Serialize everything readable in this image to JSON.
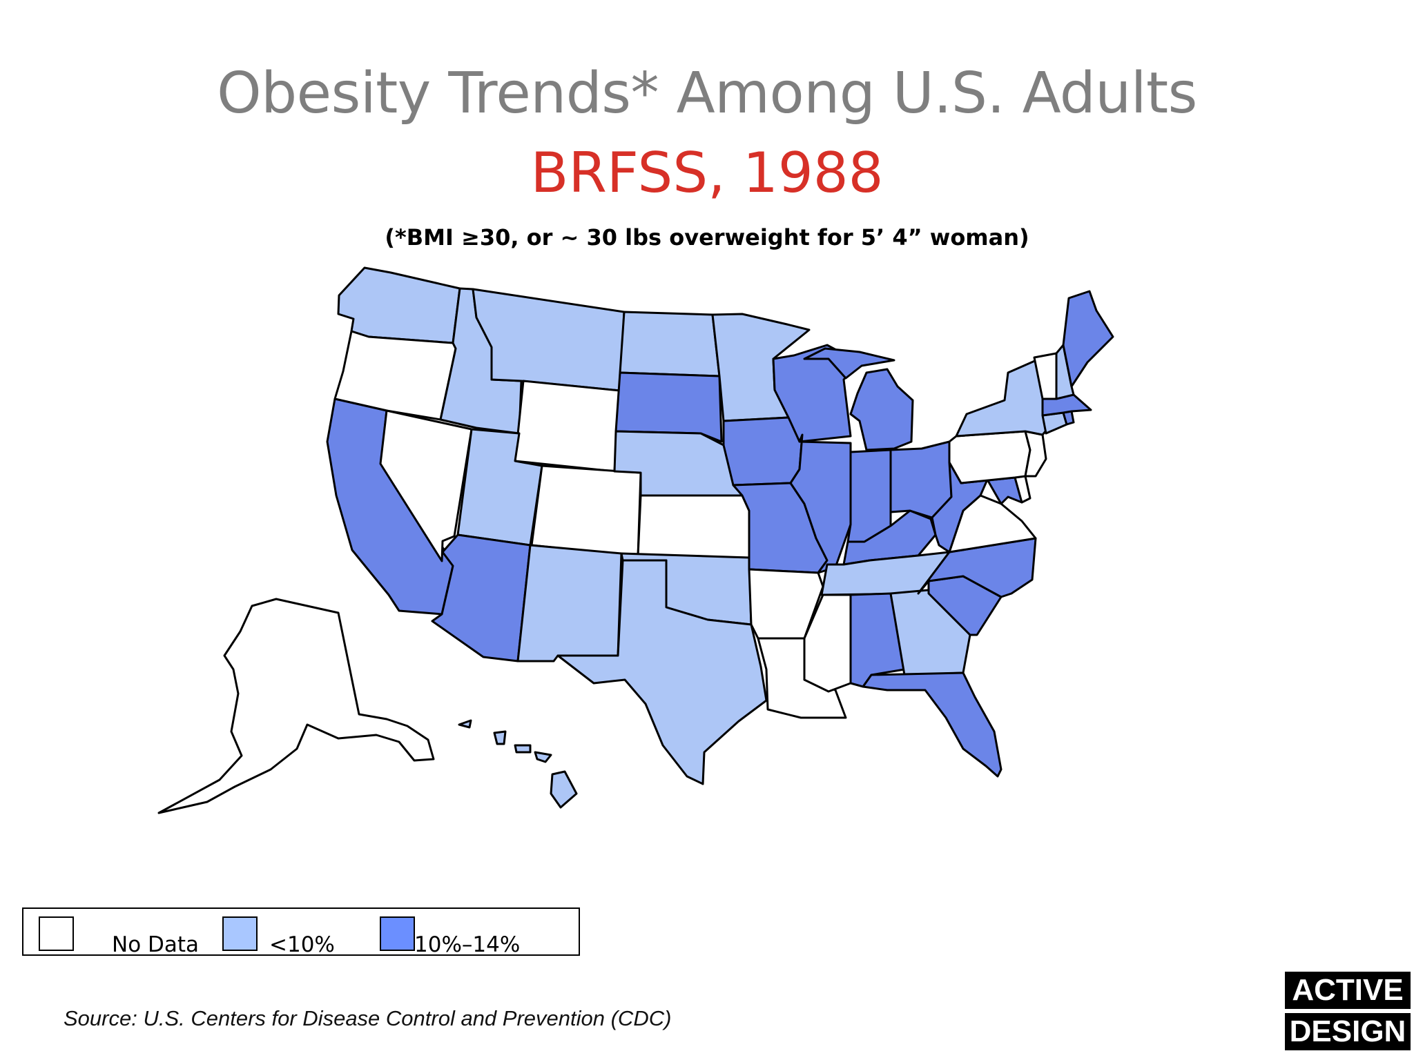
{
  "title": "Obesity Trends* Among U.S. Adults",
  "subtitle": "BRFSS, 1988",
  "note": "(*BMI ≥30, or ~ 30 lbs overweight for 5’ 4” woman)",
  "legend": [
    {
      "label": "No Data",
      "color": "#ffffff"
    },
    {
      "label": "<10%",
      "color": "#a9c7ff"
    },
    {
      "label": "10%–14%",
      "color": "#6b8fff"
    }
  ],
  "map_colors": {
    "no_data": "#ffffff",
    "lt10": "#adc6f6",
    "p10_14": "#6b85e8"
  },
  "states": {
    "no_data": [
      "OR",
      "NV",
      "WY",
      "CO",
      "KS",
      "AR",
      "LA",
      "MS",
      "PA",
      "NJ",
      "DE",
      "VA",
      "VT",
      "AK"
    ],
    "lt10": [
      "WA",
      "ID",
      "MT",
      "ND",
      "MN",
      "UT",
      "NE",
      "NM",
      "OK",
      "TX",
      "TN",
      "GA",
      "NY",
      "NH",
      "CT",
      "HI"
    ],
    "p10_14": [
      "CA",
      "AZ",
      "SD",
      "IA",
      "MO",
      "WI",
      "IL",
      "MI",
      "IN",
      "OH",
      "KY",
      "WV",
      "MD",
      "NC",
      "SC",
      "AL",
      "FL",
      "MA",
      "ME",
      "RI"
    ]
  },
  "source": "Source: U.S. Centers for Disease Control and Prevention (CDC)",
  "brand": {
    "line1": "ACTIVE",
    "line2": "DESIGN"
  }
}
